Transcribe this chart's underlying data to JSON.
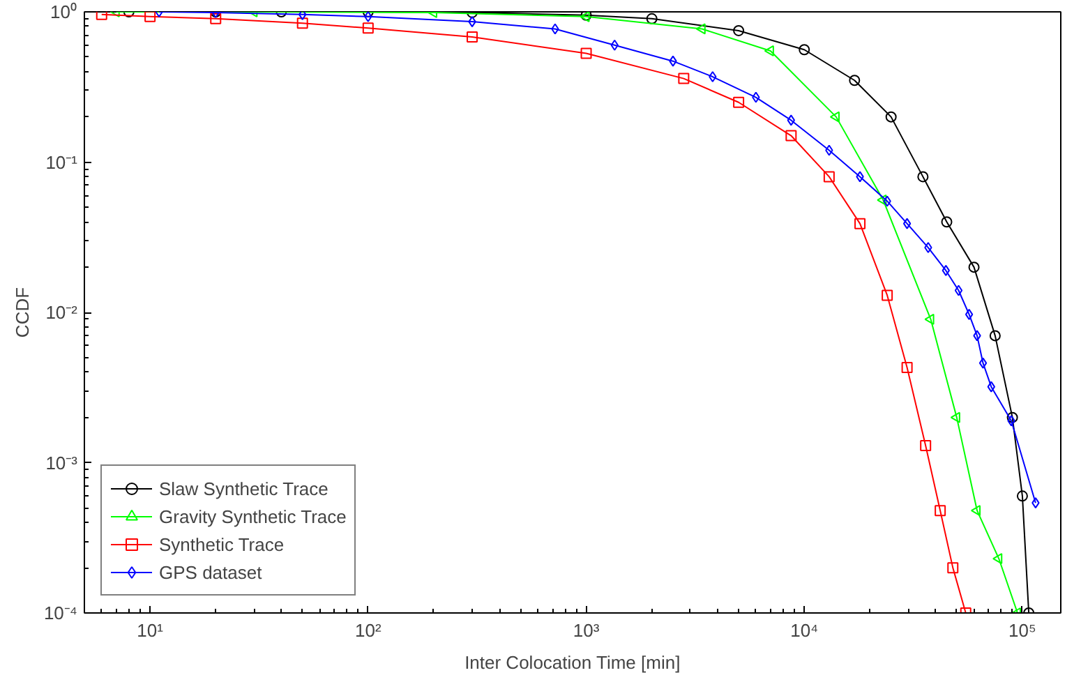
{
  "chart_data": {
    "type": "line",
    "xlabel": "Inter Colocation Time [min]",
    "ylabel": "CCDF",
    "log": "xy",
    "grid": false,
    "legend": "bottom left",
    "xlim": [
      5,
      150000
    ],
    "ylim": [
      0.0001,
      1
    ],
    "xticks": [
      {
        "value": 10,
        "label": "10¹"
      },
      {
        "value": 100,
        "label": "10²"
      },
      {
        "value": 1000,
        "label": "10³"
      },
      {
        "value": 10000,
        "label": "10⁴"
      },
      {
        "value": 100000,
        "label": "10⁵"
      }
    ],
    "yticks": [
      {
        "value": 0.0001,
        "label": "10⁻⁴"
      },
      {
        "value": 0.001,
        "label": "10⁻³"
      },
      {
        "value": 0.01,
        "label": "10⁻²"
      },
      {
        "value": 0.1,
        "label": "10⁻¹"
      },
      {
        "value": 1,
        "label": "10⁰"
      }
    ],
    "series": [
      {
        "name": "Slaw Synthetic Trace",
        "color": "#000000",
        "marker": "circle",
        "x": [
          8,
          20,
          40,
          100,
          300,
          1000,
          2000,
          5000,
          10000,
          17000,
          25000,
          35000,
          45000,
          60000,
          75000,
          90000,
          100000,
          107000
        ],
        "values": [
          1,
          1,
          1,
          1,
          0.99,
          0.95,
          0.9,
          0.75,
          0.56,
          0.35,
          0.2,
          0.08,
          0.04,
          0.02,
          0.007,
          0.002,
          0.0006,
          0.0001
        ]
      },
      {
        "name": "Gravity Synthetic Trace",
        "color": "#00ff00",
        "marker": "triangle",
        "x": [
          7,
          30,
          200,
          1000,
          3400,
          7000,
          14000,
          23000,
          38000,
          50000,
          62000,
          78000,
          95000
        ],
        "values": [
          1,
          1,
          0.99,
          0.93,
          0.77,
          0.55,
          0.2,
          0.056,
          0.009,
          0.002,
          0.00048,
          0.00023,
          0.0001
        ]
      },
      {
        "name": "Synthetic Trace",
        "color": "#ff0000",
        "marker": "square",
        "x": [
          6,
          10,
          20,
          50,
          100,
          300,
          1000,
          2800,
          5000,
          8700,
          13000,
          18000,
          24000,
          29600,
          36000,
          42000,
          48000,
          55000
        ],
        "values": [
          0.96,
          0.93,
          0.9,
          0.84,
          0.78,
          0.68,
          0.53,
          0.36,
          0.25,
          0.15,
          0.08,
          0.039,
          0.013,
          0.0043,
          0.0013,
          0.00048,
          0.0002,
          0.0001
        ]
      },
      {
        "name": "GPS dataset",
        "color": "#0000ff",
        "marker": "diamond",
        "x": [
          11,
          20,
          50,
          100,
          300,
          720,
          1350,
          2500,
          3800,
          6000,
          8700,
          13000,
          18000,
          24000,
          29600,
          37000,
          44600,
          51000,
          57000,
          62000,
          66000,
          72000,
          89000,
          115000
        ],
        "values": [
          1,
          0.99,
          0.96,
          0.93,
          0.86,
          0.77,
          0.6,
          0.47,
          0.37,
          0.27,
          0.19,
          0.12,
          0.08,
          0.055,
          0.039,
          0.027,
          0.019,
          0.014,
          0.0097,
          0.007,
          0.0046,
          0.0032,
          0.0019,
          0.00054
        ]
      }
    ]
  }
}
